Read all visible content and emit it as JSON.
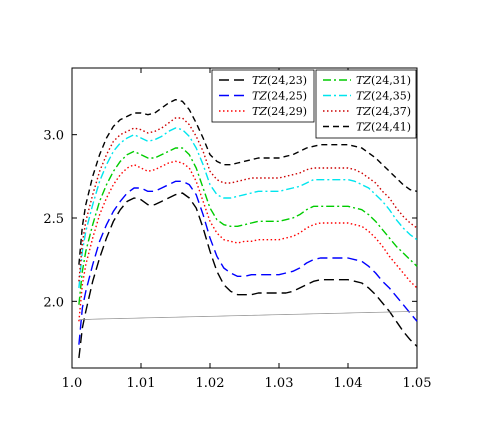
{
  "chart_data": {
    "type": "line",
    "title": "",
    "xlabel": "",
    "ylabel": "",
    "xlim": [
      1.0,
      1.05
    ],
    "ylim": [
      1.6,
      3.4
    ],
    "x_ticks": [
      1.0,
      1.01,
      1.02,
      1.03,
      1.04,
      1.05
    ],
    "x_tick_labels": [
      "1.0",
      "1.01",
      "1.02",
      "1.03",
      "1.04",
      "1.05"
    ],
    "y_ticks": [
      2.0,
      2.5,
      3.0
    ],
    "y_tick_labels": [
      "2.0",
      "2.5",
      "3.0"
    ],
    "grid": false,
    "legend": {
      "placement": "top-right",
      "columns": 2
    },
    "x": [
      1.001,
      1.0015,
      1.002,
      1.003,
      1.004,
      1.005,
      1.006,
      1.007,
      1.008,
      1.009,
      1.01,
      1.011,
      1.012,
      1.013,
      1.014,
      1.015,
      1.016,
      1.017,
      1.018,
      1.019,
      1.02,
      1.021,
      1.022,
      1.023,
      1.024,
      1.025,
      1.026,
      1.027,
      1.028,
      1.029,
      1.03,
      1.031,
      1.032,
      1.033,
      1.034,
      1.035,
      1.036,
      1.037,
      1.038,
      1.039,
      1.04,
      1.041,
      1.042,
      1.043,
      1.044,
      1.045,
      1.046,
      1.047,
      1.048,
      1.049,
      1.05
    ],
    "series": [
      {
        "name": "(24,23)",
        "color": "#000000",
        "dash": "long",
        "values": [
          1.66,
          1.84,
          1.94,
          2.12,
          2.26,
          2.38,
          2.48,
          2.55,
          2.6,
          2.62,
          2.61,
          2.58,
          2.58,
          2.6,
          2.62,
          2.64,
          2.65,
          2.62,
          2.56,
          2.44,
          2.3,
          2.18,
          2.1,
          2.06,
          2.04,
          2.04,
          2.04,
          2.05,
          2.05,
          2.05,
          2.05,
          2.05,
          2.06,
          2.08,
          2.1,
          2.12,
          2.13,
          2.13,
          2.13,
          2.13,
          2.13,
          2.12,
          2.11,
          2.08,
          2.04,
          1.99,
          1.94,
          1.88,
          1.82,
          1.77,
          1.73
        ]
      },
      {
        "name": "(24,25)",
        "color": "#0000ff",
        "dash": "long",
        "values": [
          1.74,
          1.96,
          2.06,
          2.22,
          2.36,
          2.46,
          2.54,
          2.6,
          2.65,
          2.68,
          2.68,
          2.66,
          2.66,
          2.68,
          2.7,
          2.72,
          2.72,
          2.7,
          2.64,
          2.52,
          2.38,
          2.27,
          2.2,
          2.17,
          2.15,
          2.15,
          2.16,
          2.16,
          2.16,
          2.16,
          2.16,
          2.17,
          2.18,
          2.2,
          2.23,
          2.25,
          2.26,
          2.26,
          2.26,
          2.26,
          2.26,
          2.25,
          2.24,
          2.21,
          2.17,
          2.12,
          2.08,
          2.03,
          1.98,
          1.93,
          1.88
        ]
      },
      {
        "name": "(24,29)",
        "color": "#ff0000",
        "dash": "dot",
        "values": [
          1.88,
          2.1,
          2.22,
          2.38,
          2.52,
          2.62,
          2.7,
          2.76,
          2.8,
          2.82,
          2.8,
          2.78,
          2.79,
          2.81,
          2.83,
          2.84,
          2.83,
          2.8,
          2.72,
          2.6,
          2.48,
          2.41,
          2.37,
          2.36,
          2.35,
          2.36,
          2.36,
          2.37,
          2.37,
          2.37,
          2.37,
          2.38,
          2.39,
          2.41,
          2.44,
          2.46,
          2.47,
          2.47,
          2.47,
          2.47,
          2.47,
          2.46,
          2.45,
          2.42,
          2.38,
          2.33,
          2.27,
          2.22,
          2.17,
          2.12,
          2.08
        ]
      },
      {
        "name": "(24,31)",
        "color": "#00cc00",
        "dash": "dashdot",
        "values": [
          1.98,
          2.18,
          2.3,
          2.46,
          2.6,
          2.7,
          2.78,
          2.84,
          2.88,
          2.9,
          2.88,
          2.86,
          2.86,
          2.88,
          2.9,
          2.92,
          2.92,
          2.88,
          2.8,
          2.68,
          2.56,
          2.49,
          2.46,
          2.45,
          2.45,
          2.46,
          2.47,
          2.48,
          2.48,
          2.48,
          2.48,
          2.49,
          2.5,
          2.52,
          2.55,
          2.57,
          2.57,
          2.57,
          2.57,
          2.57,
          2.57,
          2.56,
          2.55,
          2.52,
          2.48,
          2.43,
          2.38,
          2.33,
          2.29,
          2.25,
          2.21
        ]
      },
      {
        "name": "(24,35)",
        "color": "#00e5ee",
        "dash": "dashdot",
        "values": [
          2.08,
          2.3,
          2.42,
          2.58,
          2.72,
          2.82,
          2.9,
          2.95,
          2.98,
          3.0,
          2.98,
          2.96,
          2.97,
          2.99,
          3.02,
          3.04,
          3.03,
          2.99,
          2.92,
          2.82,
          2.7,
          2.64,
          2.62,
          2.62,
          2.63,
          2.64,
          2.65,
          2.66,
          2.66,
          2.66,
          2.66,
          2.67,
          2.68,
          2.69,
          2.71,
          2.73,
          2.73,
          2.73,
          2.73,
          2.73,
          2.73,
          2.72,
          2.7,
          2.68,
          2.64,
          2.6,
          2.55,
          2.49,
          2.44,
          2.4,
          2.37
        ]
      },
      {
        "name": "(24,37)",
        "color": "#cc0000",
        "dash": "dot",
        "values": [
          2.12,
          2.35,
          2.48,
          2.64,
          2.78,
          2.88,
          2.96,
          3.0,
          3.02,
          3.04,
          3.03,
          3.01,
          3.02,
          3.04,
          3.07,
          3.1,
          3.1,
          3.06,
          2.99,
          2.9,
          2.78,
          2.73,
          2.71,
          2.71,
          2.72,
          2.73,
          2.74,
          2.74,
          2.74,
          2.74,
          2.74,
          2.75,
          2.76,
          2.77,
          2.79,
          2.8,
          2.8,
          2.8,
          2.8,
          2.8,
          2.8,
          2.79,
          2.77,
          2.74,
          2.71,
          2.66,
          2.62,
          2.56,
          2.51,
          2.47,
          2.44
        ]
      },
      {
        "name": "(24,41)",
        "color": "#000000",
        "dash": "short",
        "values": [
          2.22,
          2.45,
          2.58,
          2.75,
          2.88,
          2.98,
          3.05,
          3.09,
          3.11,
          3.13,
          3.13,
          3.12,
          3.13,
          3.16,
          3.19,
          3.21,
          3.2,
          3.15,
          3.07,
          2.98,
          2.88,
          2.84,
          2.82,
          2.82,
          2.83,
          2.84,
          2.85,
          2.86,
          2.86,
          2.86,
          2.86,
          2.87,
          2.88,
          2.9,
          2.92,
          2.93,
          2.94,
          2.94,
          2.94,
          2.94,
          2.94,
          2.93,
          2.92,
          2.89,
          2.86,
          2.82,
          2.78,
          2.74,
          2.7,
          2.67,
          2.66
        ]
      },
      {
        "name": "",
        "color": "#888888",
        "dash": "solid",
        "values": [
          1.89,
          1.891,
          1.891,
          1.893,
          1.894,
          1.895,
          1.896,
          1.897,
          1.898,
          1.899,
          1.9,
          1.901,
          1.902,
          1.903,
          1.904,
          1.905,
          1.906,
          1.907,
          1.908,
          1.909,
          1.91,
          1.911,
          1.912,
          1.913,
          1.914,
          1.915,
          1.916,
          1.917,
          1.918,
          1.919,
          1.92,
          1.921,
          1.922,
          1.923,
          1.924,
          1.925,
          1.926,
          1.927,
          1.928,
          1.929,
          1.93,
          1.931,
          1.932,
          1.933,
          1.934,
          1.935,
          1.936,
          1.937,
          1.938,
          1.939,
          1.94
        ]
      }
    ],
    "legend_entries": [
      {
        "prefix": "TZ",
        "suffix": "(24,23)"
      },
      {
        "prefix": "TZ",
        "suffix": "(24,25)"
      },
      {
        "prefix": "TZ",
        "suffix": "(24,29)"
      },
      {
        "prefix": "TZ",
        "suffix": "(24,31)"
      },
      {
        "prefix": "TZ",
        "suffix": "(24,35)"
      },
      {
        "prefix": "TZ",
        "suffix": "(24,37)"
      },
      {
        "prefix": "TZ",
        "suffix": "(24,41)"
      }
    ]
  }
}
